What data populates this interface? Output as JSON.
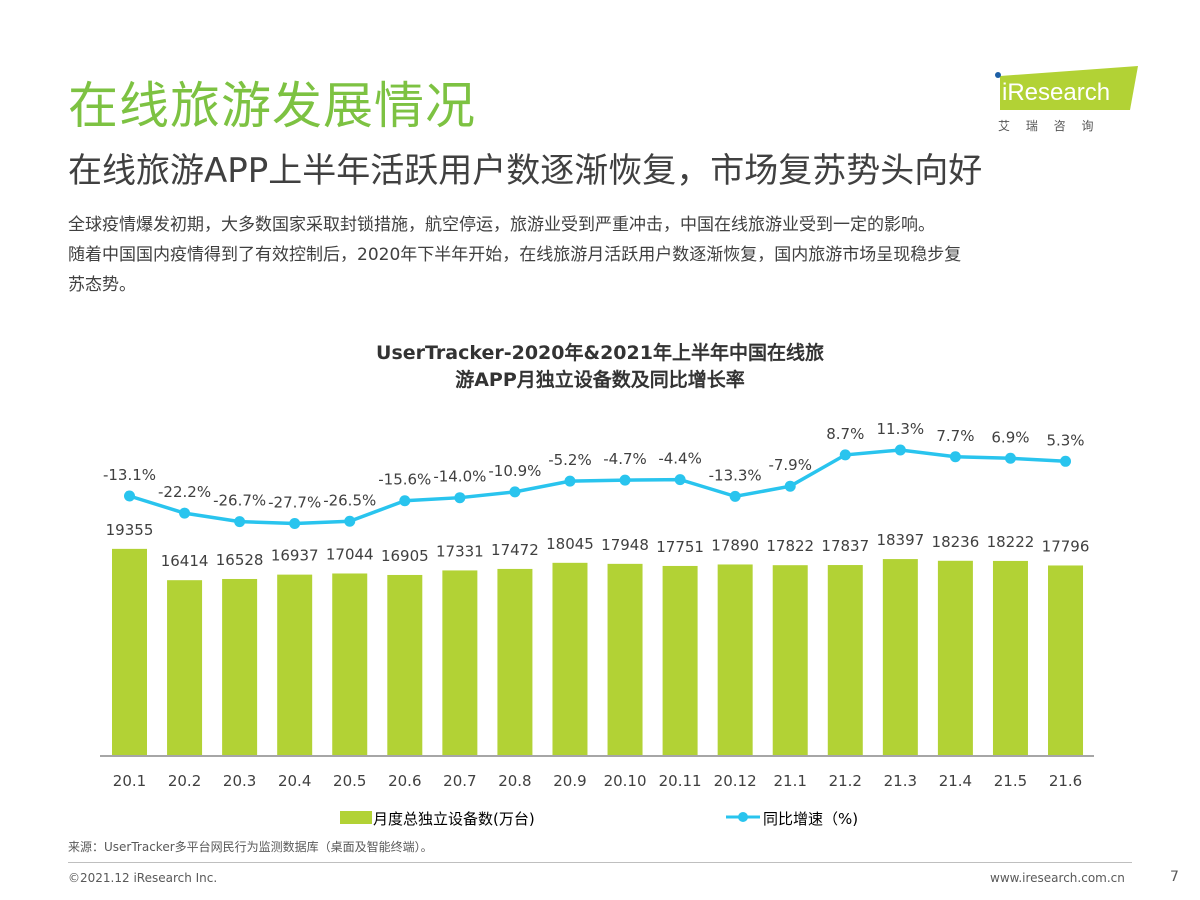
{
  "header": {
    "title": "在线旅游发展情况",
    "subtitle": "在线旅游APP上半年活跃用户数逐渐恢复，市场复苏势头向好",
    "description": [
      "全球疫情爆发初期，大多数国家采取封锁措施，航空停运，旅游业受到严重冲击，中国在线旅游业受到一定的影响。",
      "随着中国国内疫情得到了有效控制后，2020年下半年开始，在线旅游月活跃用户数逐渐恢复，国内旅游市场呈现稳步复",
      "苏态势。"
    ],
    "logo": {
      "text": "iResearch",
      "sub": "艾 瑞 咨 询"
    }
  },
  "chart_data": {
    "type": "bar",
    "title": "UserTracker-2020年&2021年上半年中国在线旅游APP月独立设备数及同比增长率",
    "title_lines": [
      "UserTracker-2020年&2021年上半年中国在线旅",
      "游APP月独立设备数及同比增长率"
    ],
    "categories": [
      "20.1",
      "20.2",
      "20.3",
      "20.4",
      "20.5",
      "20.6",
      "20.7",
      "20.8",
      "20.9",
      "20.10",
      "20.11",
      "20.12",
      "21.1",
      "21.2",
      "21.3",
      "21.4",
      "21.5",
      "21.6"
    ],
    "series": [
      {
        "name": "月度总独立设备数(万台)",
        "type": "bar",
        "color": "#b2d235",
        "values": [
          19355,
          16414,
          16528,
          16937,
          17044,
          16905,
          17331,
          17472,
          18045,
          17948,
          17751,
          17890,
          17822,
          17837,
          18397,
          18236,
          18222,
          17796
        ]
      },
      {
        "name": "同比增速（%)",
        "type": "line",
        "color": "#29c4ee",
        "values": [
          -13.1,
          -22.2,
          -26.7,
          -27.7,
          -26.5,
          -15.6,
          -14.0,
          -10.9,
          -5.2,
          -4.7,
          -4.4,
          -13.3,
          -7.9,
          8.7,
          11.3,
          7.7,
          6.9,
          5.3
        ],
        "labels": [
          "-13.1%",
          "-22.2%",
          "-26.7%",
          "-27.7%",
          "-26.5%",
          "-15.6%",
          "-14.0%",
          "-10.9%",
          "-5.2%",
          "-4.7%",
          "-4.4%",
          "-13.3%",
          "-7.9%",
          "8.7%",
          "11.3%",
          "7.7%",
          "6.9%",
          "5.3%"
        ]
      }
    ],
    "legend": "bottom",
    "grid": false
  },
  "footer": {
    "source": "来源：UserTracker多平台网民行为监测数据库（桌面及智能终端）。",
    "copyright": "©2021.12 iResearch Inc.",
    "website": "www.iresearch.com.cn",
    "page": "7"
  }
}
